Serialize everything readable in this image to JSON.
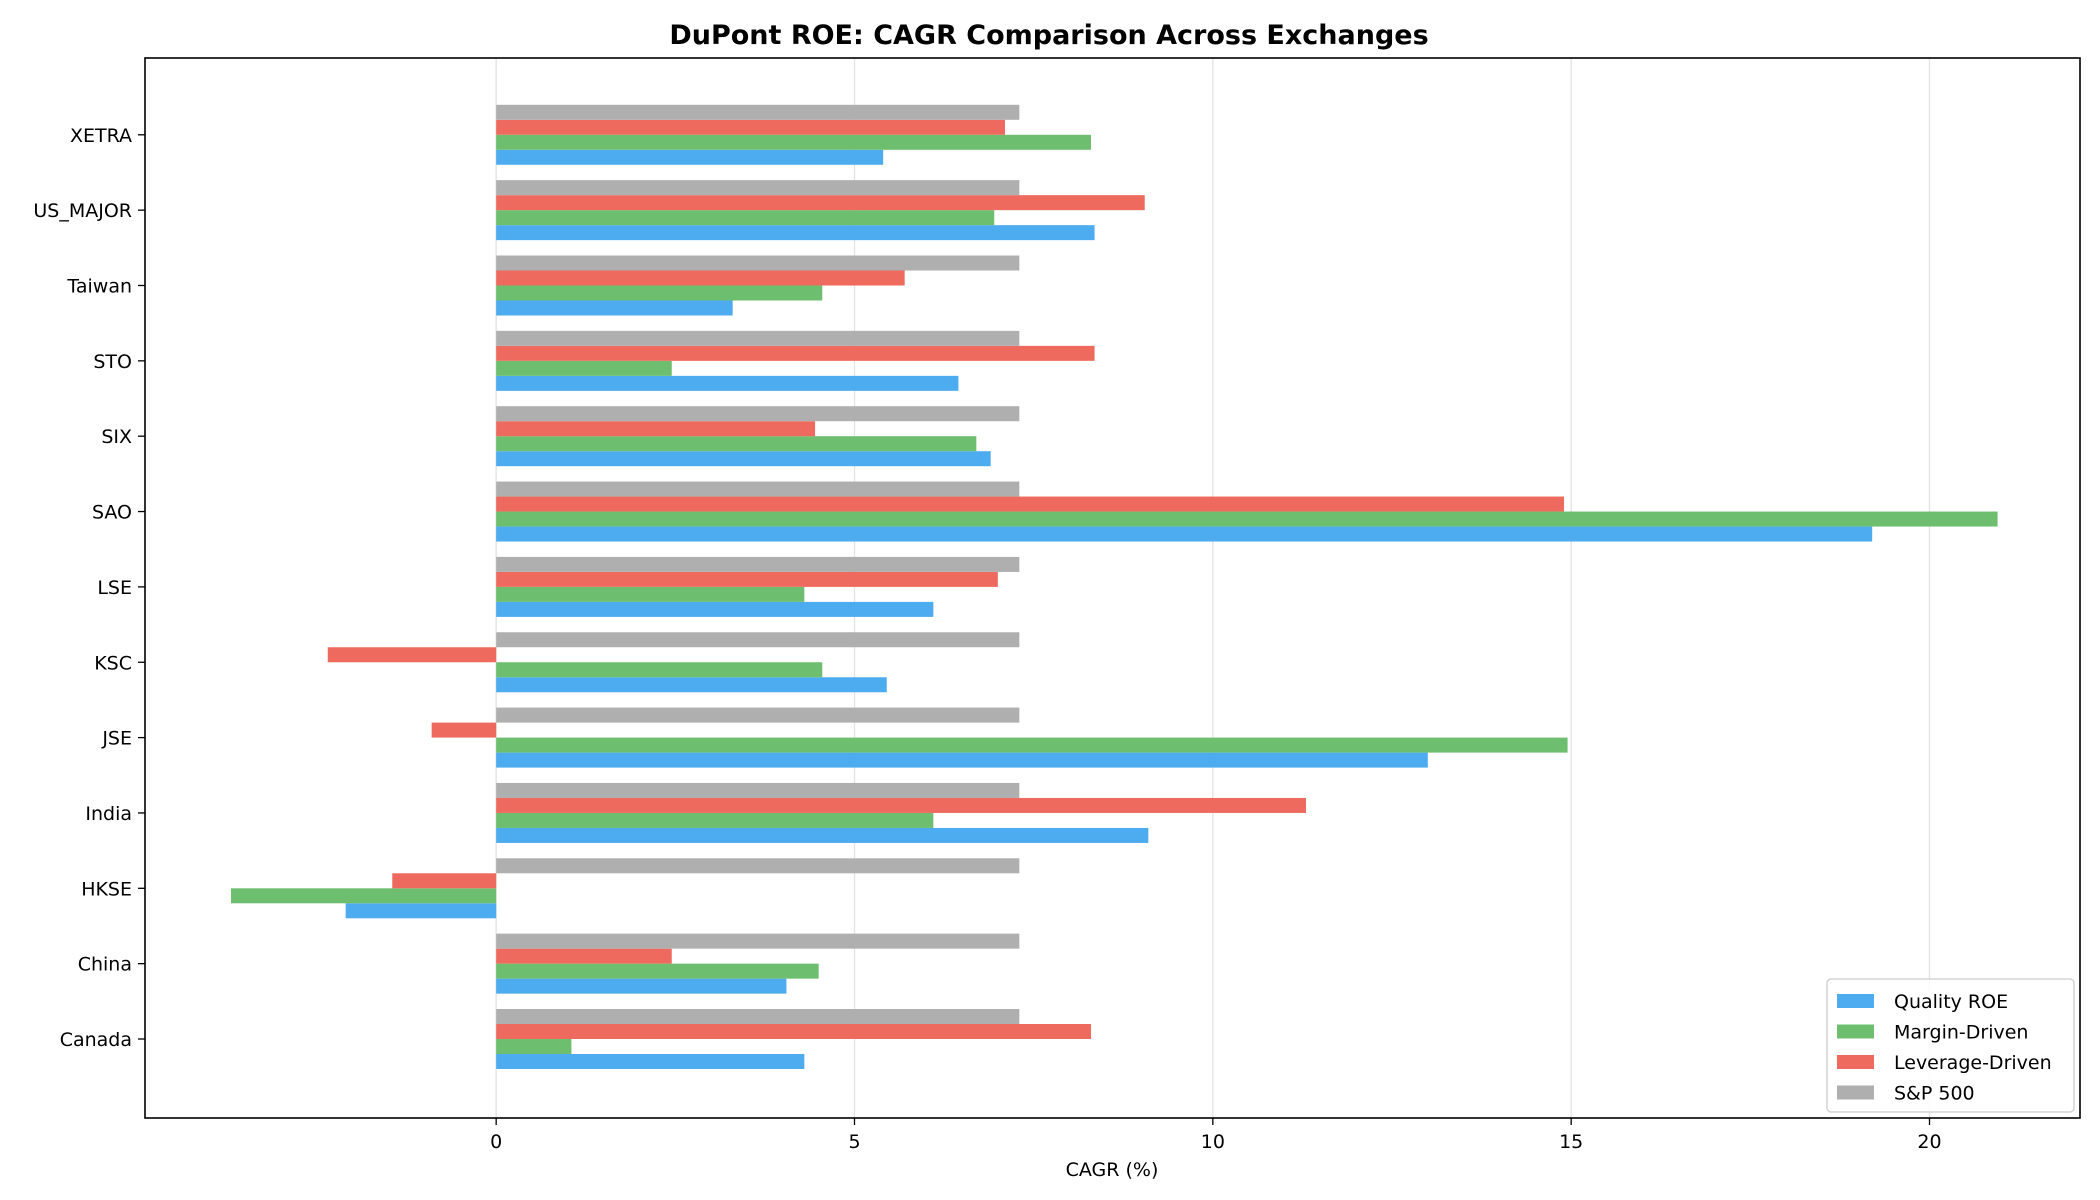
{
  "chart_data": {
    "type": "bar",
    "orientation": "horizontal",
    "title": "DuPont ROE: CAGR Comparison Across Exchanges",
    "xlabel": "CAGR (%)",
    "ylabel": "",
    "xlim": [
      -4.9,
      22.1
    ],
    "xticks": [
      0,
      5,
      10,
      15,
      20
    ],
    "grid": "vertical",
    "legend_position": "lower-right",
    "categories": [
      "Canada",
      "China",
      "HKSE",
      "India",
      "JSE",
      "KSC",
      "LSE",
      "SAO",
      "SIX",
      "STO",
      "Taiwan",
      "US_MAJOR",
      "XETRA"
    ],
    "series": [
      {
        "name": "Quality ROE",
        "color": "#4DABF0",
        "values": [
          4.3,
          4.05,
          -2.1,
          9.1,
          13.0,
          5.45,
          6.1,
          19.2,
          6.9,
          6.45,
          3.3,
          8.35,
          5.4
        ]
      },
      {
        "name": "Margin-Driven",
        "color": "#6DBE6F",
        "values": [
          1.05,
          4.5,
          -3.7,
          6.1,
          14.95,
          4.55,
          4.3,
          20.95,
          6.7,
          2.45,
          4.55,
          6.95,
          8.3
        ]
      },
      {
        "name": "Leverage-Driven",
        "color": "#EF6A5E",
        "values": [
          8.3,
          2.45,
          -1.45,
          11.3,
          -0.9,
          -2.35,
          7.0,
          14.9,
          4.45,
          8.35,
          5.7,
          9.05,
          7.1
        ]
      },
      {
        "name": "S&P 500",
        "color": "#AFAFAF",
        "values": [
          7.3,
          7.3,
          7.3,
          7.3,
          7.3,
          7.3,
          7.3,
          7.3,
          7.3,
          7.3,
          7.3,
          7.3,
          7.3
        ]
      }
    ]
  }
}
